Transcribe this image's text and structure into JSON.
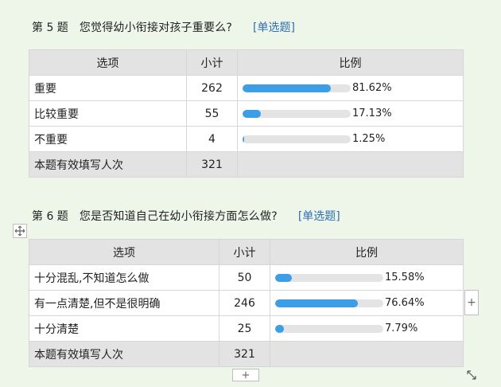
{
  "questions": [
    {
      "number": "第 5 题",
      "text": "您觉得幼小衔接对孩子重要么?",
      "type": "[单选题]",
      "headers": {
        "option": "选项",
        "count": "小计",
        "ratio": "比例"
      },
      "rows": [
        {
          "option": "重要",
          "count": "262",
          "percent": 81.62,
          "percent_label": "81.62%"
        },
        {
          "option": "比较重要",
          "count": "55",
          "percent": 17.13,
          "percent_label": "17.13%"
        },
        {
          "option": "不重要",
          "count": "4",
          "percent": 1.25,
          "percent_label": "1.25%"
        }
      ],
      "total": {
        "label": "本题有效填写人次",
        "count": "321"
      }
    },
    {
      "number": "第 6 题",
      "text": "您是否知道自己在幼小衔接方面怎么做?",
      "type": "[单选题]",
      "headers": {
        "option": "选项",
        "count": "小计",
        "ratio": "比例"
      },
      "rows": [
        {
          "option": "十分混乱,不知道怎么做",
          "count": "50",
          "percent": 15.58,
          "percent_label": "15.58%"
        },
        {
          "option": "有一点清楚,但不是很明确",
          "count": "246",
          "percent": 76.64,
          "percent_label": "76.64%"
        },
        {
          "option": "十分清楚",
          "count": "25",
          "percent": 7.79,
          "percent_label": "7.79%"
        }
      ],
      "total": {
        "label": "本题有效填写人次",
        "count": "321"
      }
    }
  ],
  "controls": {
    "add_column": "+",
    "add_row": "+",
    "move_icon": "move-icon",
    "resize_icon": "resize-icon"
  },
  "colors": {
    "background": "#eef6ea",
    "bar_fill": "#3b9ee6",
    "bar_track": "#e4e4e4",
    "header_bg": "#e3e3e3",
    "question_type": "#2f6fb2"
  }
}
